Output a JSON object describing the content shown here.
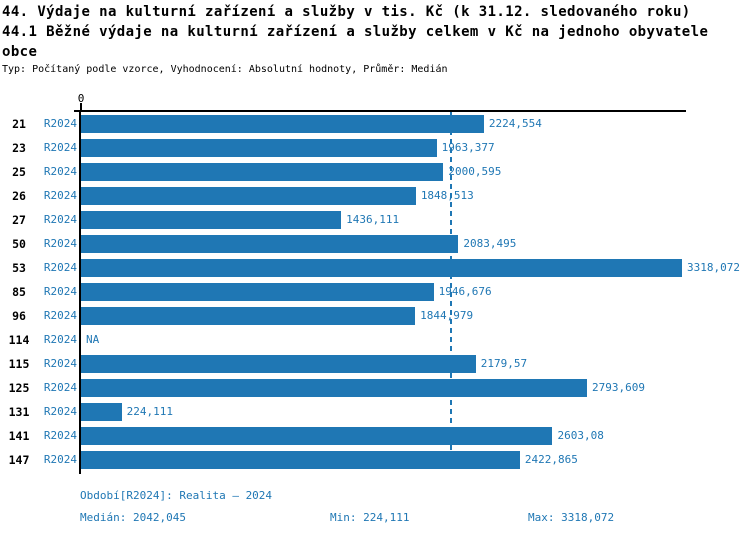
{
  "title": {
    "line1": "44. Výdaje na kulturní zařízení a služby v tis. Kč (k 31.12. sledovaného roku)",
    "line2": "44.1 Běžné výdaje na kulturní zařízení a služby celkem v Kč na jednoho obyvatele obce",
    "meta": "Typ: Počítaný podle vzorce, Vyhodnocení: Absolutní hodnoty, Průměr: Medián"
  },
  "chart_data": {
    "type": "bar",
    "orientation": "horizontal",
    "title": "44.1 Běžné výdaje na kulturní zařízení a služby celkem v Kč na jednoho obyvatele obce",
    "axis_zero_label": "0",
    "xlim": [
      0,
      3318.072
    ],
    "grid": false,
    "bar_color": "#1f77b4",
    "label_color": "#1f77b4",
    "series_label": "R2024",
    "median_value": 2042.045,
    "rows": [
      {
        "id": "21",
        "period": "R2024",
        "value": 2224.554,
        "label": "2224,554"
      },
      {
        "id": "23",
        "period": "R2024",
        "value": 1963.377,
        "label": "1963,377"
      },
      {
        "id": "25",
        "period": "R2024",
        "value": 2000.595,
        "label": "2000,595"
      },
      {
        "id": "26",
        "period": "R2024",
        "value": 1848.513,
        "label": "1848,513"
      },
      {
        "id": "27",
        "period": "R2024",
        "value": 1436.111,
        "label": "1436,111"
      },
      {
        "id": "50",
        "period": "R2024",
        "value": 2083.495,
        "label": "2083,495"
      },
      {
        "id": "53",
        "period": "R2024",
        "value": 3318.072,
        "label": "3318,072"
      },
      {
        "id": "85",
        "period": "R2024",
        "value": 1946.676,
        "label": "1946,676"
      },
      {
        "id": "96",
        "period": "R2024",
        "value": 1844.979,
        "label": "1844,979"
      },
      {
        "id": "114",
        "period": "R2024",
        "value": null,
        "label": "NA"
      },
      {
        "id": "115",
        "period": "R2024",
        "value": 2179.57,
        "label": "2179,57"
      },
      {
        "id": "125",
        "period": "R2024",
        "value": 2793.609,
        "label": "2793,609"
      },
      {
        "id": "131",
        "period": "R2024",
        "value": 224.111,
        "label": "224,111"
      },
      {
        "id": "141",
        "period": "R2024",
        "value": 2603.08,
        "label": "2603,08"
      },
      {
        "id": "147",
        "period": "R2024",
        "value": 2422.865,
        "label": "2422,865"
      }
    ]
  },
  "footer": {
    "period": "Období[R2024]: Realita – 2024",
    "median": "Medián: 2042,045",
    "min": "Min: 224,111",
    "max": "Max: 3318,072"
  },
  "colors": {
    "accent": "#1f77b4",
    "axis": "#000000",
    "background": "#ffffff"
  }
}
